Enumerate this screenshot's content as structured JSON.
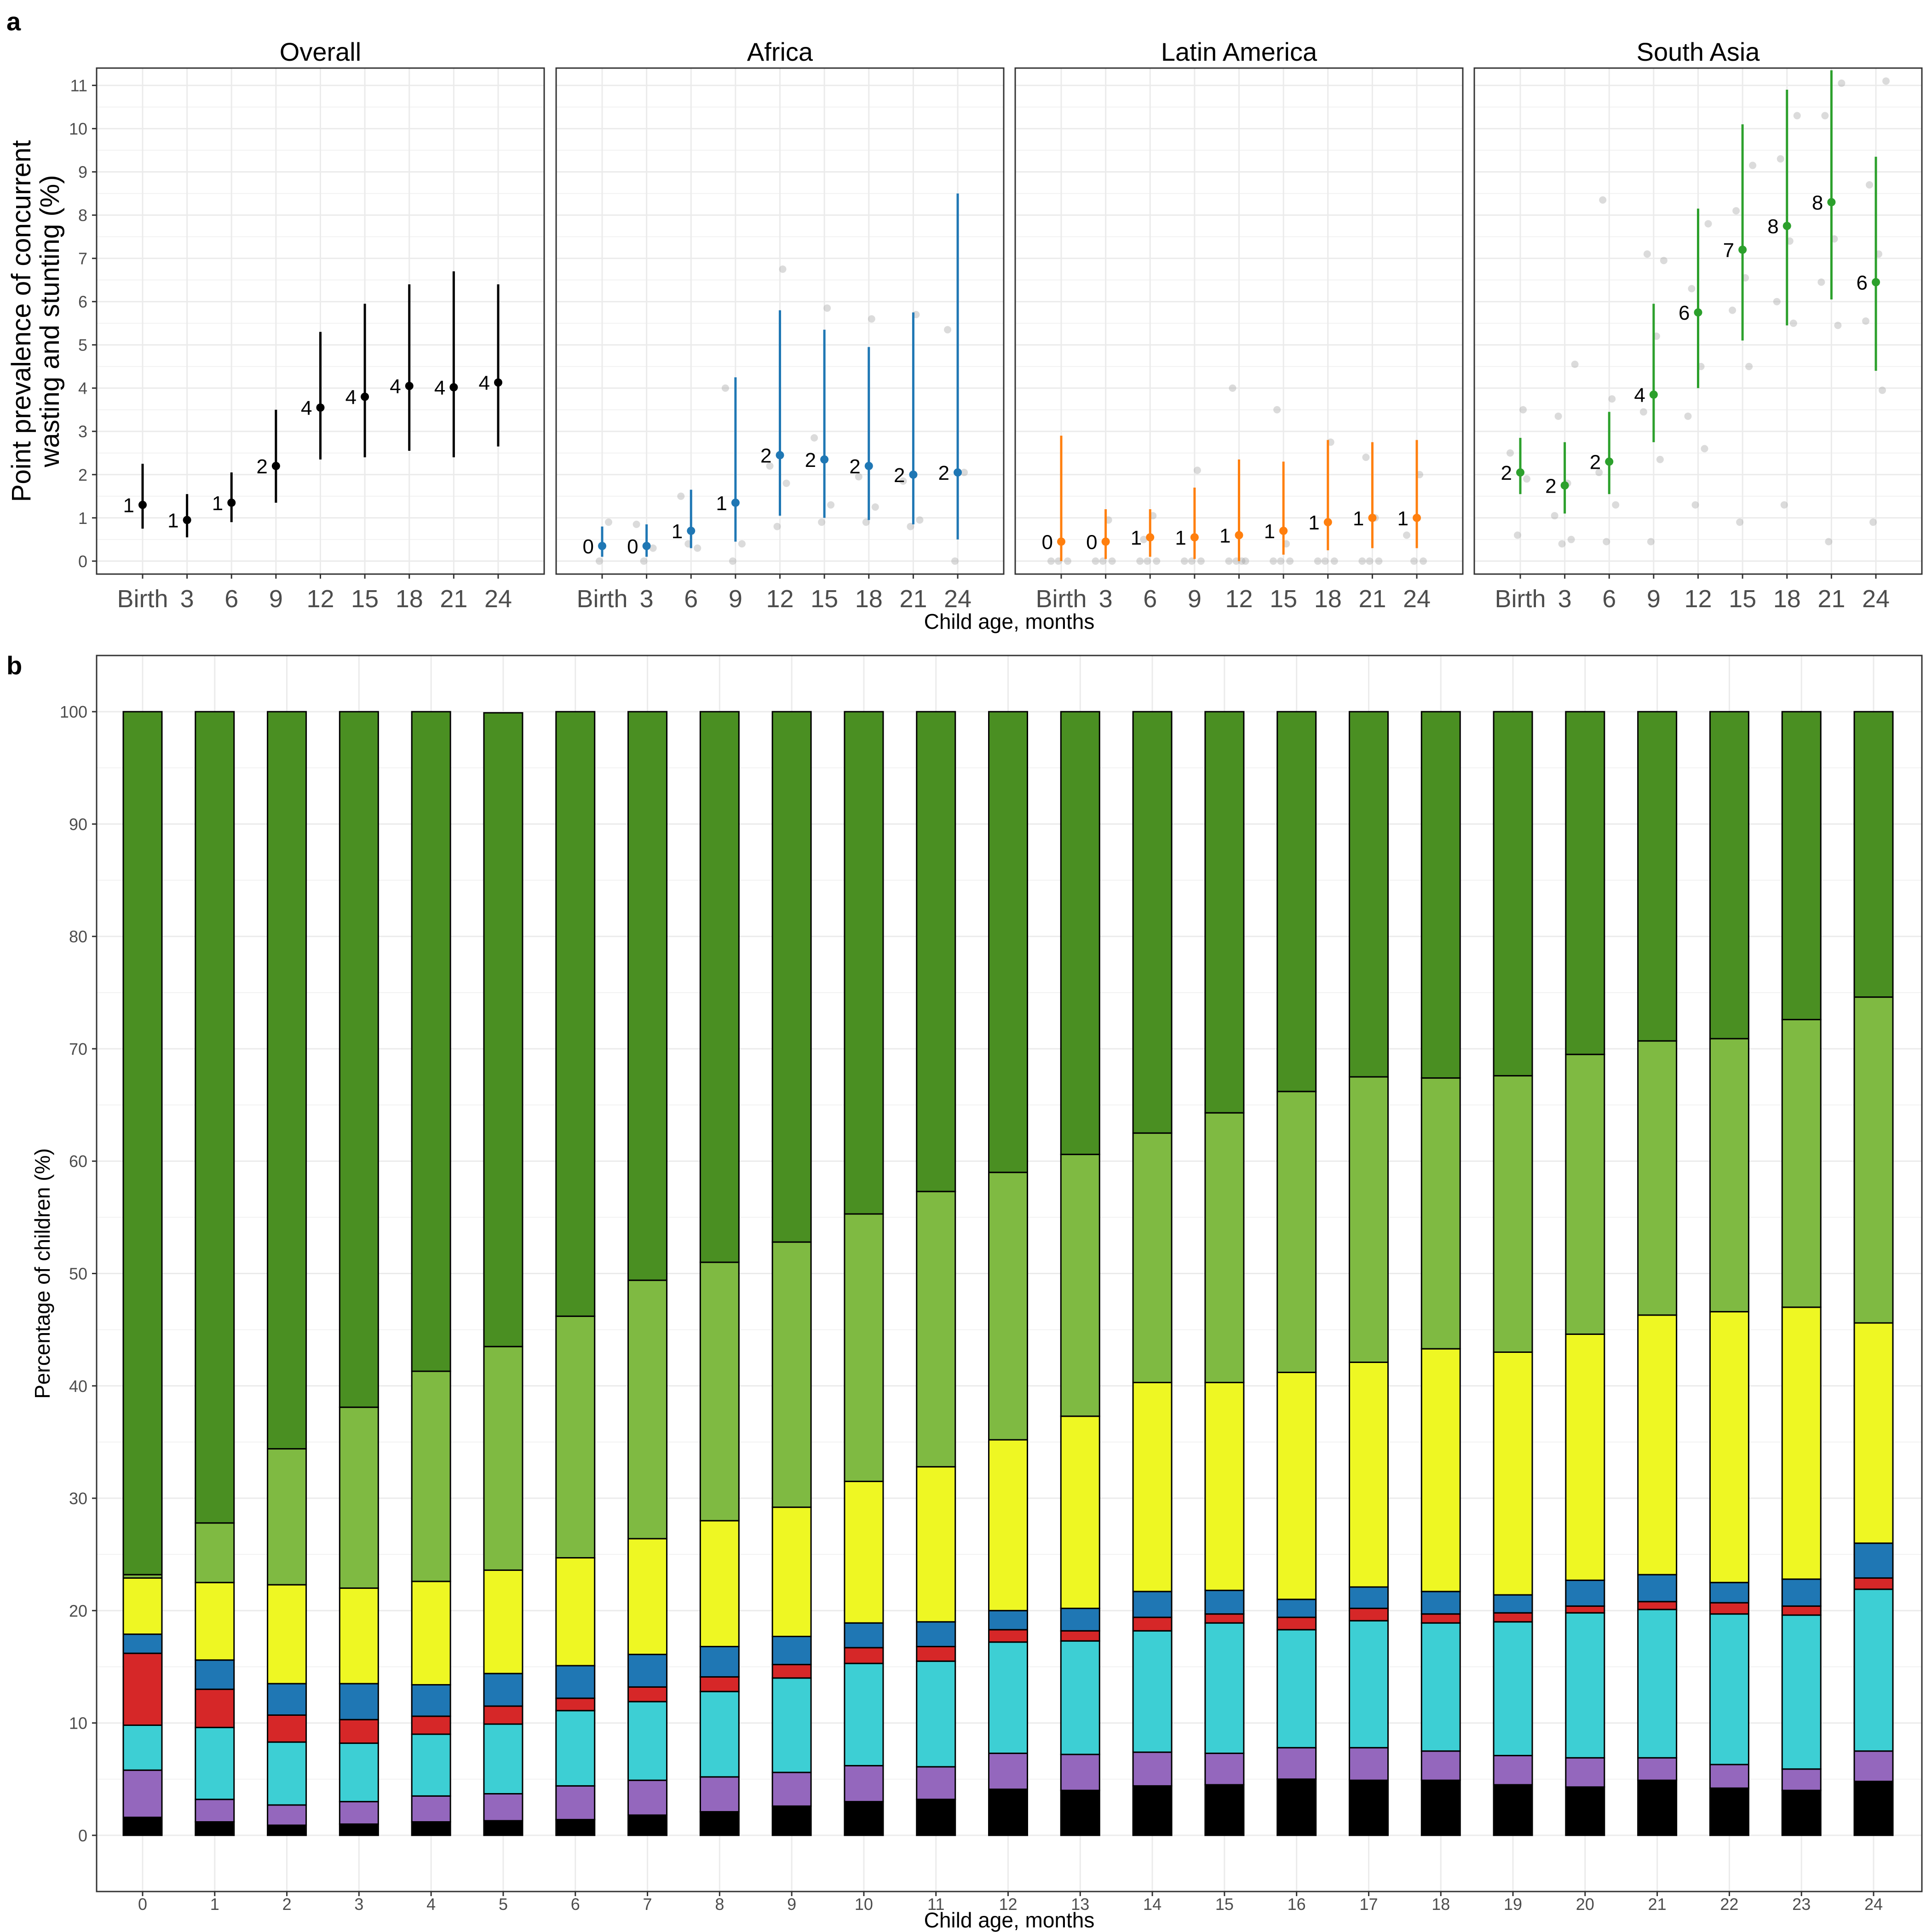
{
  "figure": {
    "panel_a_letter": "a",
    "panel_b_letter": "b"
  },
  "chart_data": [
    {
      "type": "scatter",
      "panel": "a",
      "ylabel": "Point prevalence of concurrent\nwasting and stunting (%)",
      "xlabel": "Child age, months",
      "ylim": [
        -0.3,
        11.4
      ],
      "yticks": [
        0,
        1,
        2,
        3,
        4,
        5,
        6,
        7,
        8,
        9,
        10,
        11
      ],
      "categories": [
        "Birth",
        "3",
        "6",
        "9",
        "12",
        "15",
        "18",
        "21",
        "24"
      ],
      "grid": true,
      "facets": [
        {
          "title": "Overall",
          "color": "#000000",
          "estimates": [
            1.3,
            0.95,
            1.35,
            2.2,
            3.55,
            3.8,
            4.05,
            4.02,
            4.13
          ],
          "ci_low": [
            0.75,
            0.55,
            0.9,
            1.35,
            2.35,
            2.4,
            2.55,
            2.4,
            2.65
          ],
          "ci_high": [
            2.25,
            1.55,
            2.05,
            3.5,
            5.3,
            5.95,
            6.4,
            6.7,
            6.4
          ],
          "labels": [
            "1",
            "1",
            "1",
            "2",
            "4",
            "4",
            "4",
            "4",
            "4"
          ],
          "cohorts": [
            [],
            [],
            [],
            [],
            [],
            [],
            [],
            [],
            []
          ]
        },
        {
          "title": "Africa",
          "color": "#1f77b4",
          "estimates": [
            0.35,
            0.35,
            0.7,
            1.35,
            2.45,
            2.35,
            2.2,
            2.0,
            2.05
          ],
          "ci_low": [
            0.1,
            0.1,
            0.3,
            0.45,
            1.05,
            1.0,
            0.95,
            0.85,
            0.5
          ],
          "ci_high": [
            0.8,
            0.85,
            1.65,
            4.25,
            5.8,
            5.35,
            4.95,
            5.75,
            8.5
          ],
          "labels": [
            "0",
            "0",
            "1",
            "1",
            "2",
            "2",
            "2",
            "2",
            "2"
          ],
          "cohorts": [
            [
              0,
              0.9
            ],
            [
              0,
              0.3,
              0.85
            ],
            [
              0.4,
              0.3,
              1.5
            ],
            [
              0,
              0.4,
              4.0
            ],
            [
              0.8,
              1.8,
              2.2,
              6.75
            ],
            [
              0.9,
              1.3,
              2.85,
              5.85
            ],
            [
              0.9,
              1.25,
              1.95,
              5.6
            ],
            [
              0.8,
              0.95,
              1.85,
              5.7
            ],
            [
              0,
              2.05,
              5.35
            ]
          ]
        },
        {
          "title": "Latin America",
          "color": "#ff7f0e",
          "estimates": [
            0.45,
            0.45,
            0.55,
            0.55,
            0.6,
            0.7,
            0.9,
            1.0,
            1.0
          ],
          "ci_low": [
            0.0,
            0.05,
            0.1,
            0.05,
            0.0,
            0.15,
            0.25,
            0.3,
            0.3
          ],
          "ci_high": [
            2.9,
            1.2,
            1.2,
            1.7,
            2.35,
            2.3,
            2.8,
            2.75,
            2.8
          ],
          "labels": [
            "0",
            "0",
            "1",
            "1",
            "1",
            "1",
            "1",
            "1",
            "1"
          ],
          "cohorts": [
            [
              0,
              0,
              0
            ],
            [
              0,
              0,
              0,
              0.95
            ],
            [
              0,
              0,
              0,
              1.05,
              0.5
            ],
            [
              0,
              0,
              0,
              2.1
            ],
            [
              0,
              0,
              0,
              0,
              4.0
            ],
            [
              0,
              0,
              0,
              0.4,
              3.5
            ],
            [
              0,
              0,
              0,
              2.75
            ],
            [
              0,
              0,
              0,
              1.0,
              2.4
            ],
            [
              0,
              0,
              0.6,
              2.0
            ]
          ]
        },
        {
          "title": "South Asia",
          "color": "#2ca02c",
          "estimates": [
            2.05,
            1.75,
            2.3,
            3.85,
            5.75,
            7.2,
            7.75,
            8.3,
            6.45
          ],
          "ci_low": [
            1.55,
            1.1,
            1.55,
            2.75,
            4.0,
            5.1,
            5.45,
            6.05,
            4.4
          ],
          "ci_high": [
            2.85,
            2.75,
            3.45,
            5.95,
            8.15,
            10.1,
            10.9,
            11.35,
            9.35
          ],
          "labels": [
            "2",
            "2",
            "2",
            "4",
            "6",
            "7",
            "8",
            "8",
            "6"
          ],
          "cohorts": [
            [
              0.6,
              1.9,
              2.5,
              3.5
            ],
            [
              0.4,
              0.5,
              1.05,
              1.8,
              3.35,
              4.55
            ],
            [
              0.45,
              1.3,
              2.05,
              3.75,
              8.35
            ],
            [
              0.45,
              2.35,
              3.45,
              5.2,
              7.1,
              6.95
            ],
            [
              1.3,
              2.6,
              3.35,
              4.5,
              6.3,
              7.8
            ],
            [
              0.9,
              4.5,
              5.8,
              6.55,
              8.1,
              9.15
            ],
            [
              1.3,
              5.5,
              6.0,
              7.4,
              9.3,
              10.3
            ],
            [
              0.45,
              5.45,
              6.45,
              7.45,
              10.3,
              11.05
            ],
            [
              0.9,
              3.95,
              5.55,
              7.1,
              8.7,
              11.1
            ]
          ]
        }
      ]
    },
    {
      "type": "bar",
      "stacked": true,
      "panel": "b",
      "ylabel": "Percentage of children (%)",
      "xlabel": "Child age, months",
      "ylim": [
        -5,
        105
      ],
      "yticks": [
        0,
        10,
        20,
        30,
        40,
        50,
        60,
        70,
        80,
        90,
        100
      ],
      "grid": true,
      "categories": [
        "0",
        "1",
        "2",
        "3",
        "4",
        "5",
        "6",
        "7",
        "8",
        "9",
        "10",
        "11",
        "12",
        "13",
        "14",
        "15",
        "16",
        "17",
        "18",
        "19",
        "20",
        "21",
        "22",
        "23",
        "24"
      ],
      "series": [
        {
          "color": "#000000",
          "values": [
            1.6,
            1.2,
            0.9,
            1.0,
            1.2,
            1.3,
            1.4,
            1.8,
            2.1,
            2.6,
            3.0,
            3.2,
            4.1,
            4.0,
            4.4,
            4.5,
            5.0,
            4.9,
            4.9,
            4.5,
            4.3,
            4.9,
            4.2,
            4.0,
            4.8
          ]
        },
        {
          "color": "#9467bd",
          "values": [
            4.2,
            2.0,
            1.8,
            2.0,
            2.3,
            2.4,
            3.0,
            3.1,
            3.1,
            3.0,
            3.2,
            2.9,
            3.2,
            3.2,
            3.0,
            2.8,
            2.8,
            2.9,
            2.6,
            2.6,
            2.6,
            2.0,
            2.1,
            1.9,
            2.7
          ]
        },
        {
          "color": "#3dcfd4",
          "values": [
            4.0,
            6.4,
            5.6,
            5.2,
            5.5,
            6.2,
            6.7,
            7.0,
            7.6,
            8.4,
            9.1,
            9.4,
            9.9,
            10.1,
            10.8,
            11.6,
            10.5,
            11.3,
            11.4,
            11.9,
            12.9,
            13.2,
            13.4,
            13.7,
            14.4
          ]
        },
        {
          "color": "#d62728",
          "values": [
            6.4,
            3.4,
            2.4,
            2.1,
            1.6,
            1.6,
            1.1,
            1.3,
            1.3,
            1.2,
            1.4,
            1.3,
            1.1,
            0.9,
            1.2,
            0.8,
            1.1,
            1.1,
            0.8,
            0.8,
            0.6,
            0.7,
            1.0,
            0.8,
            1.0
          ]
        },
        {
          "color": "#1f77b4",
          "values": [
            1.7,
            2.6,
            2.8,
            3.2,
            2.8,
            2.9,
            2.9,
            2.9,
            2.7,
            2.5,
            2.2,
            2.2,
            1.7,
            2.0,
            2.3,
            2.1,
            1.6,
            1.9,
            2.0,
            1.6,
            2.3,
            2.4,
            1.8,
            2.4,
            3.1
          ]
        },
        {
          "color": "#eef723",
          "values": [
            5.0,
            6.9,
            8.8,
            8.5,
            9.2,
            9.2,
            9.6,
            10.3,
            11.2,
            11.5,
            12.6,
            13.8,
            15.2,
            17.1,
            18.6,
            18.5,
            20.2,
            20.0,
            21.6,
            21.6,
            21.9,
            23.1,
            24.1,
            24.2,
            19.6
          ]
        },
        {
          "color": "#7fba42",
          "values": [
            0.3,
            5.3,
            12.1,
            16.1,
            18.7,
            19.9,
            21.5,
            23.0,
            23.0,
            23.6,
            23.8,
            24.5,
            23.8,
            23.3,
            22.2,
            24.0,
            25.0,
            25.4,
            24.1,
            24.6,
            24.9,
            24.4,
            24.3,
            25.6,
            29.0
          ]
        },
        {
          "color": "#4a8f22",
          "values": [
            76.8,
            72.2,
            65.6,
            61.9,
            58.7,
            56.4,
            53.8,
            50.6,
            49.0,
            47.2,
            44.7,
            42.7,
            41.0,
            39.4,
            37.5,
            35.7,
            33.8,
            32.5,
            32.6,
            32.4,
            30.5,
            29.3,
            29.1,
            27.4,
            25.4
          ]
        }
      ]
    }
  ]
}
